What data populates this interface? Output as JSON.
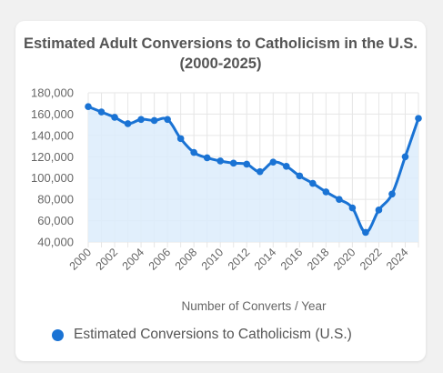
{
  "colors": {
    "series": "#1a73d4",
    "fill": "#dcecfc",
    "grid": "#e6e6e6",
    "axis_text": "#666666"
  },
  "chart_data": {
    "type": "line",
    "title": "Estimated Adult Conversions to Catholicism in the U.S. (2000-2025)",
    "xlabel": "Number of Converts / Year",
    "ylabel": "",
    "ylim": [
      40000,
      180000
    ],
    "yticks": [
      "40,000",
      "60,000",
      "80,000",
      "100,000",
      "120,000",
      "140,000",
      "160,000",
      "180,000"
    ],
    "xticks": [
      "2000",
      "2002",
      "2004",
      "2006",
      "2008",
      "2010",
      "2012",
      "2014",
      "2016",
      "2018",
      "2020",
      "2022",
      "2024"
    ],
    "grid": true,
    "legend_position": "bottom",
    "area_fill": true,
    "x": [
      2000,
      2001,
      2002,
      2003,
      2004,
      2005,
      2006,
      2007,
      2008,
      2009,
      2010,
      2011,
      2012,
      2013,
      2014,
      2015,
      2016,
      2017,
      2018,
      2019,
      2020,
      2021,
      2022,
      2023,
      2024,
      2025
    ],
    "series": [
      {
        "name": "Estimated Conversions to Catholicism (U.S.)",
        "values": [
          167000,
          162000,
          157000,
          151000,
          155000,
          154000,
          155000,
          137000,
          124000,
          119000,
          116000,
          114000,
          113000,
          106000,
          115000,
          111000,
          102000,
          95000,
          87000,
          80000,
          72000,
          49000,
          70000,
          85000,
          120000,
          156000
        ]
      }
    ]
  }
}
